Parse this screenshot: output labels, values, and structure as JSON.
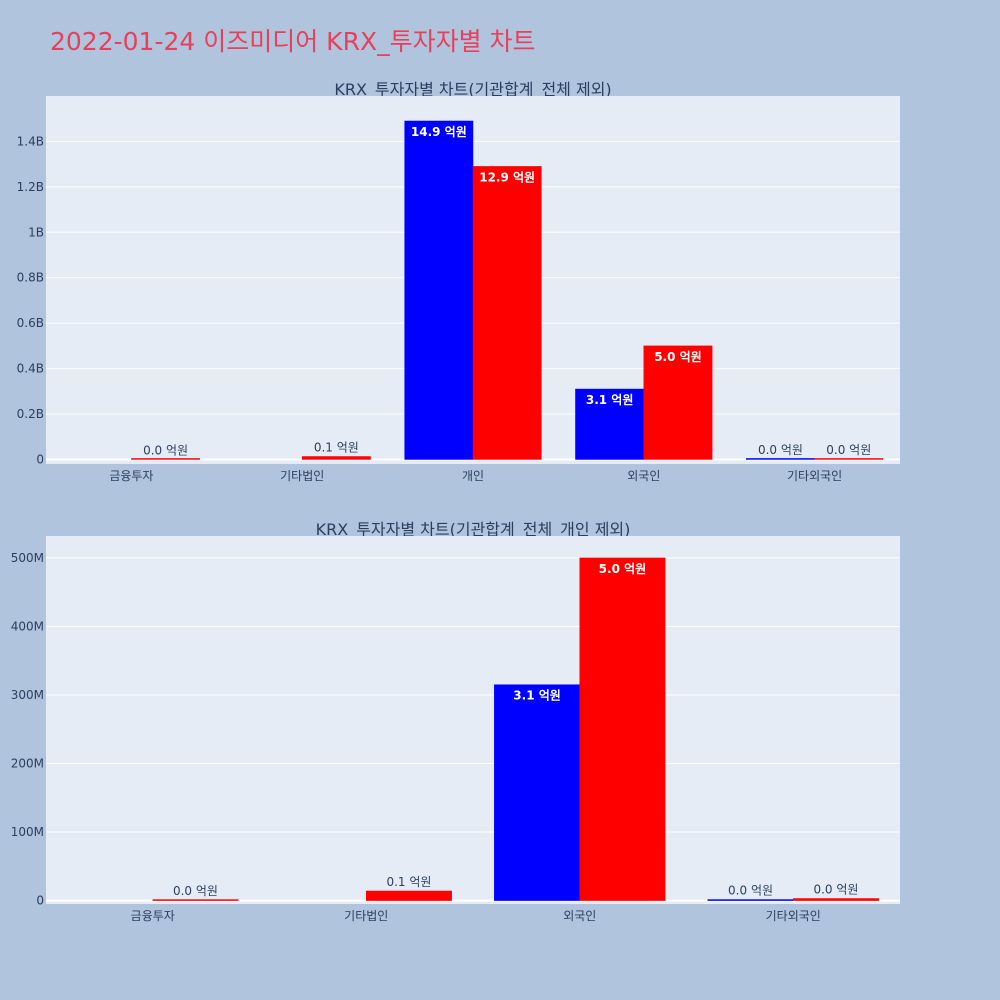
{
  "title": "2022-01-24 이즈미디어 KRX_투자자별 차트",
  "colors": {
    "series_a": "#0000ff",
    "series_b": "#ff0000",
    "plot_bg": "#e5ecf6",
    "page_bg": "#b0c4de",
    "title": "#e8405a"
  },
  "chart_data": [
    {
      "type": "bar",
      "title": "KRX_투자자별 차트(기관합계_전체 제외)",
      "categories": [
        "금융투자",
        "기타법인",
        "개인",
        "외국인",
        "기타외국인"
      ],
      "ylim": [
        -0.02,
        1.6
      ],
      "yticks": [
        {
          "value": 0,
          "label": "0"
        },
        {
          "value": 0.2,
          "label": "0.2B"
        },
        {
          "value": 0.4,
          "label": "0.4B"
        },
        {
          "value": 0.6,
          "label": "0.6B"
        },
        {
          "value": 0.8,
          "label": "0.8B"
        },
        {
          "value": 1.0,
          "label": "1B"
        },
        {
          "value": 1.2,
          "label": "1.2B"
        },
        {
          "value": 1.4,
          "label": "1.4B"
        }
      ],
      "series": [
        {
          "values": [
            null,
            null,
            1.49,
            0.31,
            0.002
          ],
          "labels": [
            "",
            "",
            "14.9 억원",
            "3.1 억원",
            "0.0 억원"
          ]
        },
        {
          "values": [
            0.0005,
            0.013,
            1.29,
            0.5,
            0.002
          ],
          "labels": [
            "0.0 억원",
            "0.1 억원",
            "12.9 억원",
            "5.0 억원",
            "0.0 억원"
          ]
        }
      ]
    },
    {
      "type": "bar",
      "title": "KRX_투자자별 차트(기관합계_전체_개인 제외)",
      "categories": [
        "금융투자",
        "기타법인",
        "외국인",
        "기타외국인"
      ],
      "ylim": [
        -5,
        532
      ],
      "yticks": [
        {
          "value": 0,
          "label": "0"
        },
        {
          "value": 100,
          "label": "100M"
        },
        {
          "value": 200,
          "label": "200M"
        },
        {
          "value": 300,
          "label": "300M"
        },
        {
          "value": 400,
          "label": "400M"
        },
        {
          "value": 500,
          "label": "500M"
        }
      ],
      "series": [
        {
          "values": [
            null,
            null,
            315,
            1.5
          ],
          "labels": [
            "",
            "",
            "3.1 억원",
            "0.0 억원"
          ]
        },
        {
          "values": [
            0.5,
            14,
            500,
            3
          ],
          "labels": [
            "0.0 억원",
            "0.1 억원",
            "5.0 억원",
            "0.0 억원"
          ]
        }
      ]
    }
  ]
}
